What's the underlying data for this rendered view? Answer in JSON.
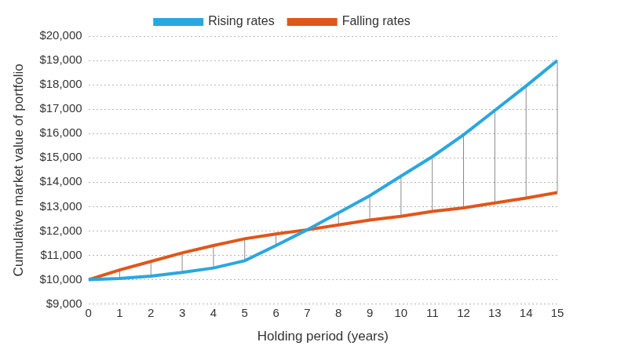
{
  "chart_data": {
    "type": "line",
    "x_label": "Holding period (years)",
    "y_label": "Cumulative market value of portfolio",
    "x": [
      0,
      1,
      2,
      3,
      4,
      5,
      6,
      7,
      8,
      9,
      10,
      11,
      12,
      13,
      14,
      15
    ],
    "series": [
      {
        "name": "Rising rates",
        "color": "#2aa7df",
        "values": [
          10000,
          10050,
          10150,
          10300,
          10480,
          10780,
          11400,
          12050,
          12750,
          13450,
          14250,
          15050,
          15950,
          16950,
          17950,
          19000
        ]
      },
      {
        "name": "Falling rates",
        "color": "#e0561b",
        "values": [
          10000,
          10400,
          10750,
          11100,
          11400,
          11680,
          11880,
          12050,
          12250,
          12450,
          12600,
          12800,
          12950,
          13150,
          13350,
          13580
        ]
      }
    ],
    "xlim": [
      0,
      15
    ],
    "xticks": [
      0,
      1,
      2,
      3,
      4,
      5,
      6,
      7,
      8,
      9,
      10,
      11,
      12,
      13,
      14,
      15
    ],
    "ylim": [
      9000,
      20000
    ],
    "yticks": [
      {
        "value": 9000,
        "label": "$9,000"
      },
      {
        "value": 10000,
        "label": "$10,000"
      },
      {
        "value": 11000,
        "label": "$11,000"
      },
      {
        "value": 12000,
        "label": "$12,000"
      },
      {
        "value": 13000,
        "label": "$13,000"
      },
      {
        "value": 14000,
        "label": "$14,000"
      },
      {
        "value": 15000,
        "label": "$15,000"
      },
      {
        "value": 16000,
        "label": "$16,000"
      },
      {
        "value": 17000,
        "label": "$17,000"
      },
      {
        "value": 18000,
        "label": "$18,000"
      },
      {
        "value": 19000,
        "label": "$19,000"
      },
      {
        "value": 20000,
        "label": "$20,000"
      }
    ],
    "grid": true,
    "legend": "top"
  }
}
